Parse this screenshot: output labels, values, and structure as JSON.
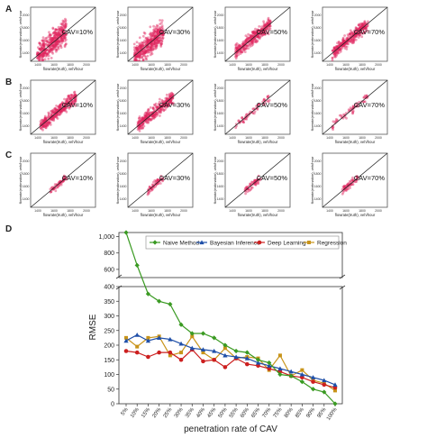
{
  "panels": {
    "letters": [
      "A",
      "B",
      "C",
      "D"
    ]
  },
  "scatter_axes": {
    "xlabel": "flowrate(truth), veh/hour",
    "ylabel": "flowrate(estimation), veh/hour",
    "ticks": [
      "1400",
      "1600",
      "1800",
      "2000"
    ]
  },
  "cav_labels": [
    "CAV=10%",
    "CAV=30%",
    "CAV=50%",
    "CAV=70%"
  ],
  "colors": {
    "scatter": "#e0245e",
    "naive": "#3a9a22",
    "bayes": "#1f4fa8",
    "deep": "#cc1f1f",
    "regression": "#c8941a"
  },
  "chart_data": [
    {
      "type": "scatter",
      "panel": "A",
      "grid": false,
      "reference_line": "y=x",
      "subplots": [
        {
          "label": "CAV=10%",
          "spread": "large"
        },
        {
          "label": "CAV=30%",
          "spread": "large"
        },
        {
          "label": "CAV=50%",
          "spread": "medium"
        },
        {
          "label": "CAV=70%",
          "spread": "medium"
        }
      ]
    },
    {
      "type": "scatter",
      "panel": "B",
      "grid": false,
      "reference_line": "y=x",
      "subplots": [
        {
          "label": "CAV=10%",
          "spread": "medium"
        },
        {
          "label": "CAV=30%",
          "spread": "medium"
        },
        {
          "label": "CAV=50%",
          "spread": "small"
        },
        {
          "label": "CAV=70%",
          "spread": "small"
        }
      ]
    },
    {
      "type": "scatter",
      "panel": "C",
      "grid": false,
      "reference_line": "y=x",
      "subplots": [
        {
          "label": "CAV=10%",
          "spread": "small"
        },
        {
          "label": "CAV=30%",
          "spread": "small"
        },
        {
          "label": "CAV=50%",
          "spread": "small"
        },
        {
          "label": "CAV=70%",
          "spread": "small"
        }
      ]
    },
    {
      "type": "line",
      "panel": "D",
      "xlabel": "penetration rate of CAV",
      "ylabel": "RMSE",
      "categories": [
        "5%",
        "10%",
        "15%",
        "20%",
        "25%",
        "30%",
        "35%",
        "40%",
        "45%",
        "50%",
        "55%",
        "60%",
        "65%",
        "70%",
        "75%",
        "80%",
        "85%",
        "90%",
        "95%",
        "100%"
      ],
      "y_axis_break": {
        "lower": [
          0,
          400
        ],
        "upper": [
          500,
          1050
        ]
      },
      "yticks_lower": [
        "0",
        "50",
        "100",
        "150",
        "200",
        "250",
        "300",
        "350",
        "400"
      ],
      "yticks_upper": [
        "600",
        "800",
        "1,000"
      ],
      "legend_placement": "top",
      "series": [
        {
          "name": "Naive Method",
          "color": "#3a9a22",
          "marker": "diamond",
          "values": [
            1050,
            650,
            375,
            350,
            340,
            270,
            240,
            240,
            225,
            200,
            180,
            175,
            150,
            140,
            100,
            95,
            75,
            50,
            40,
            0
          ]
        },
        {
          "name": "Bayesian Inference",
          "color": "#1f4fa8",
          "marker": "triangle",
          "values": [
            215,
            235,
            215,
            225,
            220,
            205,
            190,
            185,
            180,
            165,
            160,
            155,
            140,
            130,
            120,
            110,
            100,
            90,
            80,
            65
          ]
        },
        {
          "name": "Deep Learning",
          "color": "#cc1f1f",
          "marker": "circle",
          "values": [
            180,
            175,
            160,
            175,
            175,
            150,
            185,
            145,
            150,
            125,
            155,
            135,
            130,
            120,
            110,
            95,
            90,
            75,
            65,
            55
          ]
        },
        {
          "name": "Regression",
          "color": "#c8941a",
          "marker": "square",
          "values": [
            225,
            195,
            225,
            230,
            165,
            175,
            230,
            175,
            150,
            190,
            155,
            160,
            155,
            115,
            165,
            95,
            115,
            80,
            70,
            45
          ]
        }
      ]
    }
  ]
}
